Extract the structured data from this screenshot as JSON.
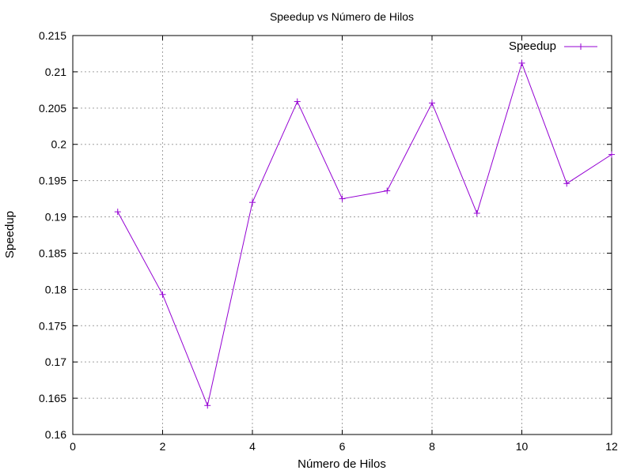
{
  "chart_data": {
    "type": "line",
    "title": "Speedup vs Número de Hilos",
    "xlabel": "Número de Hilos",
    "ylabel": "Speedup",
    "xlim": [
      0,
      12
    ],
    "ylim": [
      0.16,
      0.215
    ],
    "xticks": [
      0,
      2,
      4,
      6,
      8,
      10,
      12
    ],
    "xtick_labels": [
      "0",
      "2",
      "4",
      "6",
      "8",
      "10",
      "12"
    ],
    "yticks": [
      0.16,
      0.165,
      0.17,
      0.175,
      0.18,
      0.185,
      0.19,
      0.195,
      0.2,
      0.205,
      0.21,
      0.215
    ],
    "ytick_labels": [
      "0.16",
      "0.165",
      "0.17",
      "0.175",
      "0.18",
      "0.185",
      "0.19",
      "0.195",
      "0.2",
      "0.205",
      "0.21",
      "0.215"
    ],
    "grid": true,
    "legend_position": "top-right",
    "series": [
      {
        "name": "Speedup",
        "color": "#9400d3",
        "marker": "plus",
        "x": [
          1,
          2,
          3,
          4,
          5,
          6,
          7,
          8,
          9,
          10,
          11,
          12
        ],
        "y": [
          0.1907,
          0.1793,
          0.164,
          0.192,
          0.2059,
          0.1925,
          0.1936,
          0.2057,
          0.1905,
          0.2112,
          0.1946,
          0.1986
        ]
      }
    ]
  }
}
